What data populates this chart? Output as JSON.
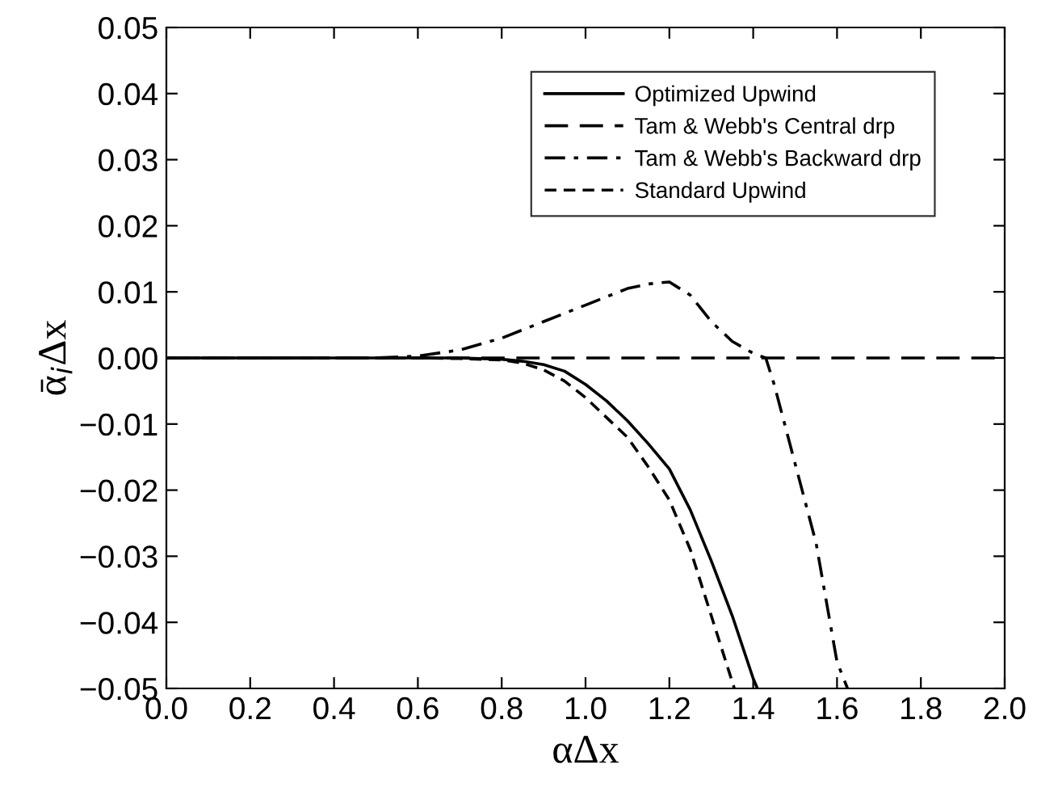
{
  "chart_data": {
    "type": "line",
    "xlabel": "αΔx",
    "ylabel": "ᾱ$_{i}$Δx",
    "xlim": [
      0.0,
      2.0
    ],
    "ylim": [
      -0.05,
      0.05
    ],
    "xticks": [
      {
        "value": 0.0,
        "label": "0.0"
      },
      0.2,
      0.4,
      0.6,
      0.8,
      {
        "value": 1.0,
        "label": "1.0"
      },
      1.2,
      1.4,
      1.6,
      1.8,
      {
        "value": 2.0,
        "label": "2.0"
      }
    ],
    "yticks": [
      {
        "value": -0.05,
        "label": "−0.05"
      },
      {
        "value": -0.04,
        "label": "−0.04"
      },
      {
        "value": -0.03,
        "label": "−0.03"
      },
      {
        "value": -0.02,
        "label": "−0.02"
      },
      {
        "value": -0.01,
        "label": "−0.01"
      },
      {
        "value": 0.0,
        "label": "0.00"
      },
      0.01,
      0.02,
      0.03,
      0.04,
      0.05
    ],
    "legend": "top right",
    "grid": false,
    "marker": "none",
    "series": [
      {
        "name": "Optimized Upwind",
        "color": "#000000",
        "line_style": "solid",
        "x": [
          0.0,
          0.5,
          0.7,
          0.8,
          0.85,
          0.9,
          0.95,
          1.0,
          1.05,
          1.1,
          1.15,
          1.2,
          1.25,
          1.3,
          1.35,
          1.4,
          1.41
        ],
        "values": [
          0.0,
          0.0,
          0.0,
          -0.0002,
          -0.0005,
          -0.001,
          -0.002,
          -0.004,
          -0.0065,
          -0.0095,
          -0.013,
          -0.0168,
          -0.023,
          -0.0307,
          -0.039,
          -0.0485,
          -0.05
        ]
      },
      {
        "name": "Tam & Webb's Central drp",
        "color": "#000000",
        "line_style": "longdash",
        "x": [
          0.0,
          2.0
        ],
        "values": [
          0.0,
          0.0
        ]
      },
      {
        "name": "Tam & Webb's Backward drp",
        "color": "#000000",
        "line_style": "dashdot",
        "x": [
          0.0,
          0.5,
          0.6,
          0.7,
          0.8,
          0.9,
          1.0,
          1.1,
          1.15,
          1.2,
          1.25,
          1.3,
          1.35,
          1.4,
          1.43,
          1.45,
          1.5,
          1.55,
          1.6,
          1.625
        ],
        "values": [
          0.0,
          0.0,
          0.0003,
          0.0012,
          0.003,
          0.0055,
          0.008,
          0.0105,
          0.0112,
          0.0115,
          0.0095,
          0.0055,
          0.0025,
          0.0007,
          0.0,
          -0.004,
          -0.016,
          -0.028,
          -0.046,
          -0.05
        ]
      },
      {
        "name": "Standard Upwind",
        "color": "#000000",
        "line_style": "dashed",
        "x": [
          0.0,
          0.6,
          0.7,
          0.8,
          0.85,
          0.9,
          0.95,
          1.0,
          1.05,
          1.1,
          1.15,
          1.2,
          1.25,
          1.3,
          1.35,
          1.355
        ],
        "values": [
          0.0,
          0.0,
          -0.0001,
          -0.0003,
          -0.0008,
          -0.0018,
          -0.0035,
          -0.006,
          -0.009,
          -0.012,
          -0.0165,
          -0.0215,
          -0.029,
          -0.039,
          -0.049,
          -0.05
        ]
      }
    ]
  }
}
